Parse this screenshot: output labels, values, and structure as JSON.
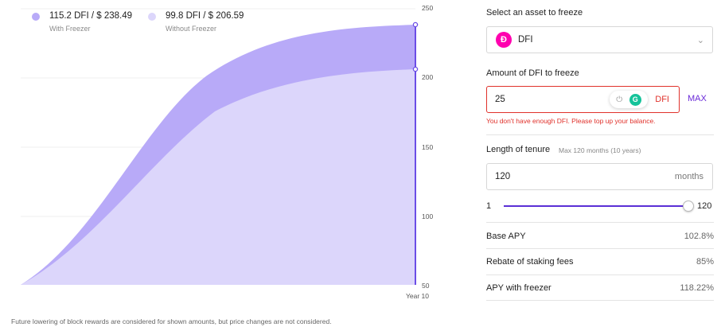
{
  "chart": {
    "legend": {
      "with": {
        "label": "115.2 DFI / $ 238.49",
        "sub": "With Freezer",
        "color": "#b8aaf8"
      },
      "without": {
        "label": "99.8 DFI / $ 206.59",
        "sub": "Without Freezer",
        "color": "#dcd6fb"
      }
    },
    "y_ticks": [
      "250",
      "200",
      "150",
      "100",
      "50"
    ],
    "x_label": "Year 10",
    "footnote": "Future lowering of block rewards are considered for shown amounts, but price changes are not considered."
  },
  "chart_data": {
    "type": "area",
    "x_label": "Year 10",
    "ylim": [
      50,
      250
    ],
    "grid": true,
    "series": [
      {
        "name": "With Freezer",
        "color": "#b8aaf8",
        "final_value": 238.49
      },
      {
        "name": "Without Freezer",
        "color": "#dcd6fb",
        "final_value": 206.59
      }
    ]
  },
  "form": {
    "asset_label": "Select an asset to freeze",
    "asset_value": "DFI",
    "amount_label": "Amount of DFI to freeze",
    "amount_value": "25",
    "amount_unit": "DFI",
    "max_label": "MAX",
    "error_text": "You don't have enough DFI. Please top up your balance.",
    "tenure_label": "Length of tenure",
    "tenure_hint": "Max 120 months (10 years)",
    "tenure_value": "120",
    "tenure_unit": "months",
    "slider_min": "1",
    "slider_max": "120",
    "slider_value": 120,
    "rows": [
      {
        "label": "Base APY",
        "value": "102.8%"
      },
      {
        "label": "Rebate of staking fees",
        "value": "85%"
      },
      {
        "label": "APY with freezer",
        "value": "118.22%"
      }
    ]
  }
}
